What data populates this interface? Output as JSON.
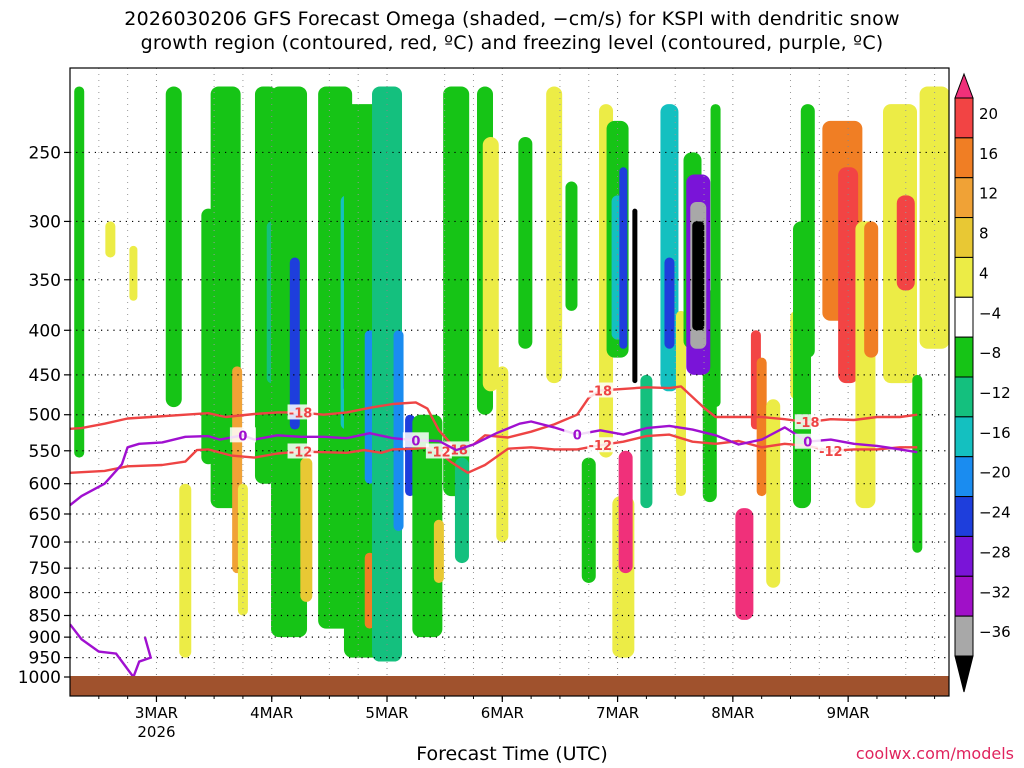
{
  "title": {
    "line1": "2026030206 GFS Forecast Omega (shaded, −cm/s) for KSPI with dendritic snow",
    "line2": "growth region (contoured, red, ºC) and freezing level (contoured, purple, ºC)"
  },
  "xlabel": "Forecast Time (UTC)",
  "credit": "coolwx.com/models",
  "chart_data": {
    "type": "heatmap",
    "y_scale": "log-pressure",
    "ylim": [
      1000,
      200
    ],
    "y_ticks": [
      250,
      300,
      350,
      400,
      450,
      500,
      550,
      600,
      650,
      700,
      750,
      800,
      850,
      900,
      950,
      1000
    ],
    "x_range_days": [
      "2026-03-02 06Z",
      "2026-03-09 21Z"
    ],
    "x_ticks": [
      {
        "label": "3MAR",
        "sublabel": "2026",
        "date": "2026-03-03 00Z"
      },
      {
        "label": "4MAR",
        "sublabel": "",
        "date": "2026-03-04 00Z"
      },
      {
        "label": "5MAR",
        "sublabel": "",
        "date": "2026-03-05 00Z"
      },
      {
        "label": "6MAR",
        "sublabel": "",
        "date": "2026-03-06 00Z"
      },
      {
        "label": "7MAR",
        "sublabel": "",
        "date": "2026-03-07 00Z"
      },
      {
        "label": "8MAR",
        "sublabel": "",
        "date": "2026-03-08 00Z"
      },
      {
        "label": "9MAR",
        "sublabel": "",
        "date": "2026-03-09 00Z"
      }
    ],
    "grid": true,
    "colorbar": {
      "labels": [
        "20",
        "16",
        "12",
        "8",
        "4",
        "−4",
        "−8",
        "−12",
        "−16",
        "−20",
        "−24",
        "−28",
        "−32",
        "−36"
      ],
      "colors": [
        "#f0307a",
        "#f24444",
        "#f07e24",
        "#f0a236",
        "#e8c834",
        "#ecec46",
        "#ffffff",
        "#16c416",
        "#14c07e",
        "#14c0c0",
        "#1a8cf0",
        "#1e3edc",
        "#7a14d8",
        "#a010c8",
        "#a8a8a8",
        "#000000"
      ]
    },
    "contours": [
      {
        "label": "-18",
        "color": "#ee4444",
        "points": [
          [
            0.0,
            519
          ],
          [
            0.1,
            518
          ],
          [
            0.3,
            512
          ],
          [
            0.5,
            505
          ],
          [
            0.7,
            503
          ],
          [
            1.0,
            500
          ],
          [
            1.2,
            498
          ],
          [
            1.35,
            503
          ],
          [
            1.6,
            499
          ],
          [
            1.8,
            497
          ],
          [
            2.0,
            497
          ],
          [
            2.2,
            500
          ],
          [
            2.4,
            497
          ],
          [
            2.6,
            491
          ],
          [
            2.8,
            486
          ],
          [
            3.0,
            484
          ],
          [
            3.1,
            492
          ],
          [
            3.2,
            521
          ],
          [
            3.35,
            548
          ],
          [
            3.5,
            541
          ],
          [
            3.6,
            528
          ],
          [
            3.8,
            531
          ],
          [
            4.0,
            523
          ],
          [
            4.2,
            513
          ],
          [
            4.4,
            500
          ],
          [
            4.5,
            478
          ],
          [
            4.6,
            469
          ],
          [
            4.8,
            467
          ],
          [
            5.0,
            465
          ],
          [
            5.2,
            466
          ],
          [
            5.3,
            464
          ],
          [
            5.5,
            491
          ],
          [
            5.6,
            503
          ],
          [
            5.8,
            503
          ],
          [
            6.0,
            503
          ],
          [
            6.2,
            506
          ],
          [
            6.4,
            510
          ],
          [
            6.6,
            506
          ],
          [
            6.8,
            507
          ],
          [
            7.0,
            503
          ],
          [
            7.2,
            503
          ],
          [
            7.35,
            500
          ]
        ]
      },
      {
        "label": "-12",
        "color": "#ee4444",
        "points": [
          [
            0.0,
            583
          ],
          [
            0.3,
            580
          ],
          [
            0.5,
            573
          ],
          [
            0.8,
            571
          ],
          [
            1.0,
            566
          ],
          [
            1.1,
            549
          ],
          [
            1.2,
            548
          ],
          [
            1.4,
            557
          ],
          [
            1.6,
            560
          ],
          [
            1.8,
            554
          ],
          [
            2.0,
            551
          ],
          [
            2.2,
            552
          ],
          [
            2.4,
            553
          ],
          [
            2.55,
            549
          ],
          [
            2.7,
            553
          ],
          [
            2.8,
            548
          ],
          [
            3.0,
            547
          ],
          [
            3.1,
            545
          ],
          [
            3.2,
            551
          ],
          [
            3.3,
            566
          ],
          [
            3.45,
            583
          ],
          [
            3.6,
            571
          ],
          [
            3.8,
            547
          ],
          [
            4.0,
            545
          ],
          [
            4.2,
            548
          ],
          [
            4.4,
            548
          ],
          [
            4.6,
            542
          ],
          [
            4.8,
            537
          ],
          [
            5.0,
            529
          ],
          [
            5.2,
            527
          ],
          [
            5.4,
            537
          ],
          [
            5.6,
            540
          ],
          [
            5.8,
            536
          ],
          [
            6.0,
            545
          ],
          [
            6.2,
            540
          ],
          [
            6.4,
            543
          ],
          [
            6.6,
            550
          ],
          [
            6.8,
            548
          ],
          [
            7.0,
            548
          ],
          [
            7.2,
            545
          ],
          [
            7.35,
            545
          ]
        ]
      },
      {
        "label": "0",
        "color": "#a010d0",
        "points": [
          [
            0.0,
            635
          ],
          [
            0.1,
            620
          ],
          [
            0.3,
            600
          ],
          [
            0.45,
            570
          ],
          [
            0.5,
            545
          ],
          [
            0.6,
            540
          ],
          [
            0.8,
            538
          ],
          [
            1.0,
            530
          ],
          [
            1.2,
            529
          ],
          [
            1.3,
            534
          ],
          [
            1.5,
            528
          ],
          [
            1.6,
            534
          ],
          [
            1.8,
            528
          ],
          [
            2.0,
            530
          ],
          [
            2.2,
            530
          ],
          [
            2.4,
            532
          ],
          [
            2.6,
            525
          ],
          [
            2.8,
            532
          ],
          [
            3.0,
            535
          ],
          [
            3.2,
            536
          ],
          [
            3.35,
            549
          ],
          [
            3.5,
            541
          ],
          [
            3.7,
            525
          ],
          [
            3.9,
            512
          ],
          [
            4.0,
            509
          ],
          [
            4.2,
            517
          ],
          [
            4.4,
            527
          ],
          [
            4.6,
            521
          ],
          [
            4.8,
            527
          ],
          [
            5.0,
            518
          ],
          [
            5.2,
            515
          ],
          [
            5.4,
            520
          ],
          [
            5.6,
            528
          ],
          [
            5.8,
            541
          ],
          [
            6.0,
            534
          ],
          [
            6.2,
            517
          ],
          [
            6.4,
            537
          ],
          [
            6.6,
            534
          ],
          [
            6.8,
            540
          ],
          [
            7.0,
            543
          ],
          [
            7.2,
            548
          ],
          [
            7.35,
            552
          ]
        ]
      }
    ]
  }
}
